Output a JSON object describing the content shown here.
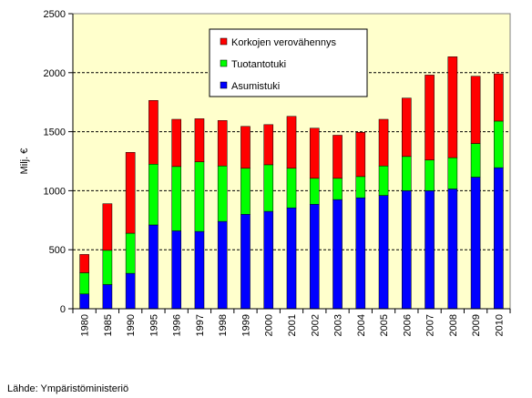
{
  "chart_data": {
    "type": "bar",
    "stacked": true,
    "categories": [
      "1980",
      "1985",
      "1990",
      "1995",
      "1996",
      "1997",
      "1998",
      "1999",
      "2000",
      "2001",
      "2002",
      "2003",
      "2004",
      "2005",
      "2006",
      "2007",
      "2008",
      "2009",
      "2010"
    ],
    "series": [
      {
        "name": "Asumistuki",
        "color": "#0000ff",
        "values": [
          125,
          205,
          300,
          710,
          660,
          655,
          740,
          800,
          825,
          855,
          885,
          925,
          940,
          960,
          1000,
          1000,
          1015,
          1115,
          1195
        ]
      },
      {
        "name": "Tuotantotuki",
        "color": "#00ff00",
        "values": [
          180,
          290,
          340,
          515,
          545,
          590,
          470,
          390,
          395,
          335,
          220,
          180,
          180,
          250,
          290,
          260,
          265,
          285,
          395
        ]
      },
      {
        "name": "Korkojen verovähennys",
        "color": "#ff0000",
        "values": [
          155,
          395,
          685,
          540,
          400,
          365,
          385,
          355,
          340,
          440,
          425,
          365,
          375,
          395,
          495,
          720,
          855,
          570,
          400
        ]
      }
    ],
    "legend_order": [
      "Korkojen verovähennys",
      "Tuotantotuki",
      "Asumistuki"
    ],
    "legend_position": "top-center",
    "ylabel": "Milj. €",
    "xlabel": "",
    "ylim": [
      0,
      2500
    ],
    "yticks": [
      0,
      500,
      1000,
      1500,
      2000,
      2500
    ],
    "grid": true,
    "plot_background": "#ffffcc"
  },
  "source_text": "Lähde: Ympäristöministeriö"
}
